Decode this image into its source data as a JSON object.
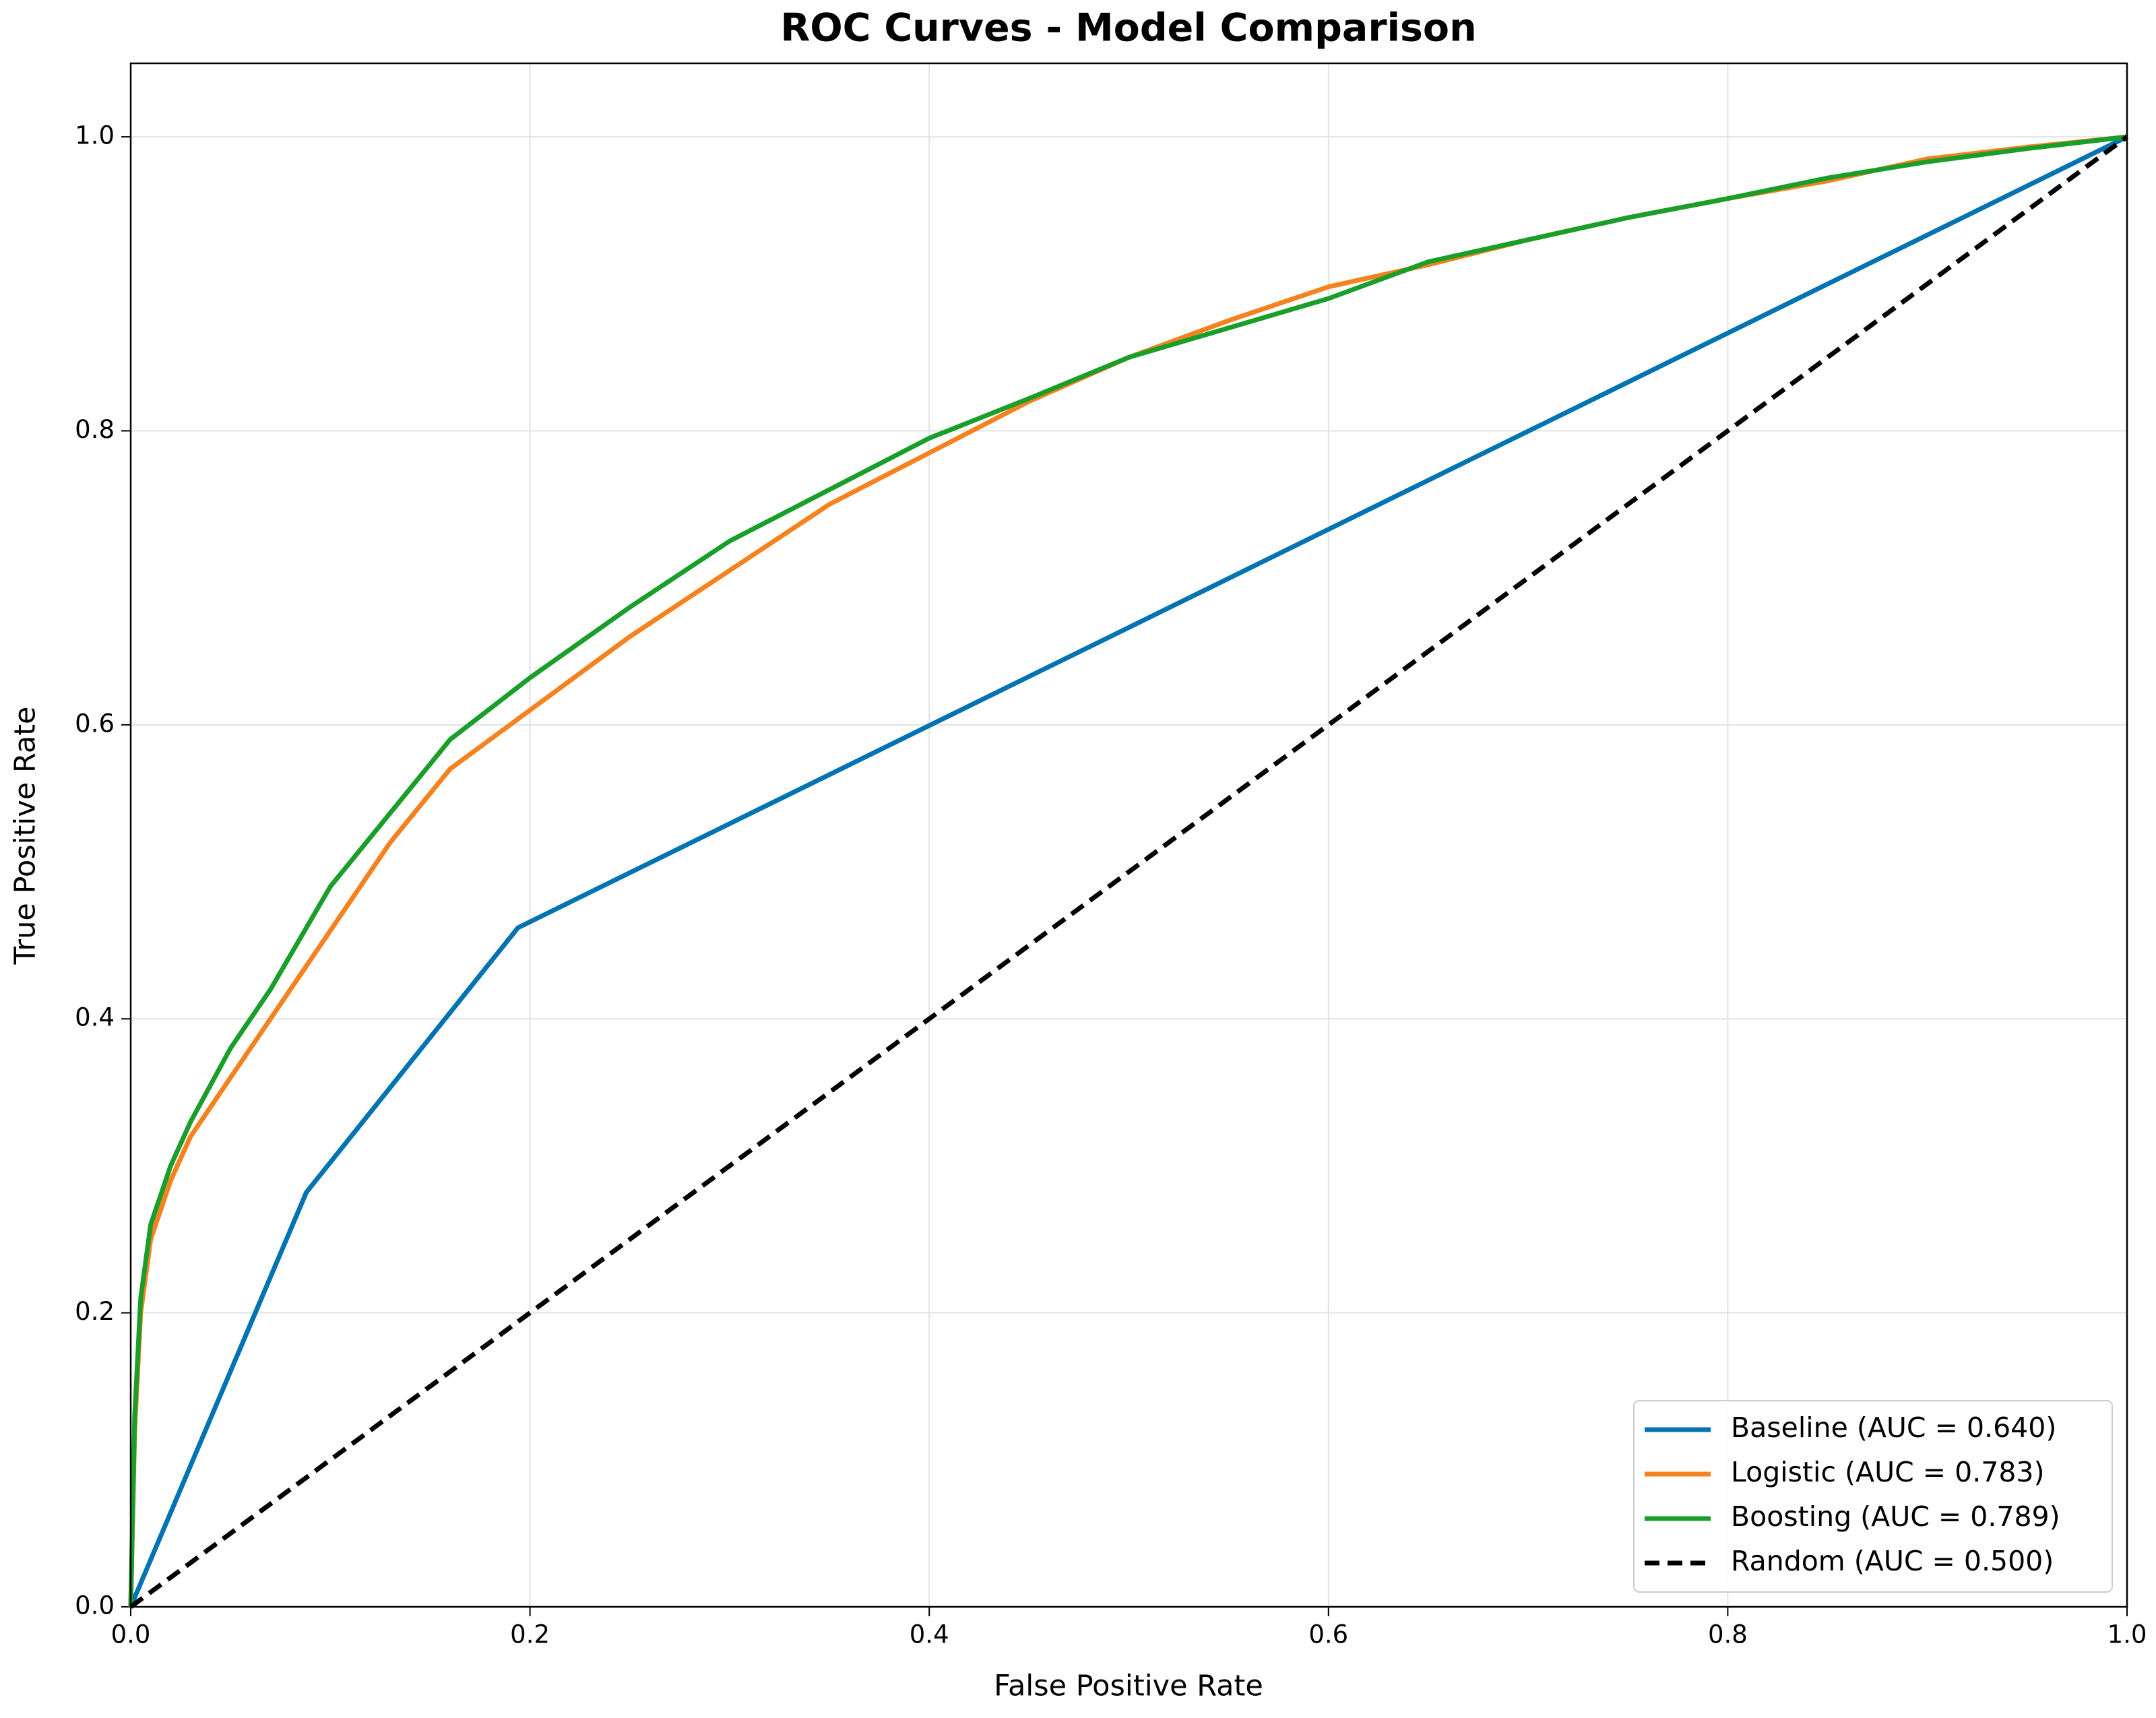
{
  "chart_data": {
    "type": "line",
    "title": "ROC Curves - Model Comparison",
    "x_label": "False Positive Rate",
    "y_label": "True Positive Rate",
    "xlim": [
      0,
      1
    ],
    "ylim": [
      0,
      1.05
    ],
    "xticks": [
      {
        "value": 0,
        "label": "0.0"
      },
      0.2,
      0.4,
      0.6,
      0.8,
      {
        "value": 1,
        "label": "1.0"
      }
    ],
    "yticks": [
      {
        "value": 0,
        "label": "0.0"
      },
      0.2,
      0.4,
      0.6,
      0.8,
      {
        "value": 1,
        "label": "1.0"
      }
    ],
    "grid": true,
    "legend": "lower right",
    "series": [
      {
        "name": "Baseline (AUC = 0.640)",
        "color": "#0173b2",
        "linestyle": "solid",
        "x": [
          0,
          0.088,
          0.194,
          1
        ],
        "values": [
          0,
          0.282,
          0.462,
          1
        ]
      },
      {
        "name": "Logistic (AUC = 0.783)",
        "color": "#f5821f",
        "linestyle": "solid",
        "x": [
          0,
          0.002,
          0.005,
          0.01,
          0.02,
          0.03,
          0.05,
          0.07,
          0.1,
          0.13,
          0.16,
          0.2,
          0.25,
          0.3,
          0.35,
          0.4,
          0.45,
          0.5,
          0.55,
          0.6,
          0.65,
          0.7,
          0.75,
          0.8,
          0.85,
          0.9,
          0.95,
          1
        ],
        "values": [
          0,
          0.12,
          0.2,
          0.25,
          0.29,
          0.32,
          0.36,
          0.4,
          0.46,
          0.52,
          0.57,
          0.61,
          0.66,
          0.705,
          0.75,
          0.785,
          0.82,
          0.85,
          0.875,
          0.898,
          0.913,
          0.93,
          0.945,
          0.958,
          0.97,
          0.985,
          0.993,
          1
        ]
      },
      {
        "name": "Boosting (AUC = 0.789)",
        "color": "#1a9e2a",
        "linestyle": "solid",
        "x": [
          0,
          0.002,
          0.005,
          0.01,
          0.02,
          0.03,
          0.05,
          0.07,
          0.1,
          0.13,
          0.16,
          0.2,
          0.25,
          0.3,
          0.35,
          0.4,
          0.45,
          0.5,
          0.55,
          0.6,
          0.65,
          0.7,
          0.75,
          0.8,
          0.85,
          0.9,
          0.95,
          1
        ],
        "values": [
          0,
          0.13,
          0.21,
          0.26,
          0.3,
          0.33,
          0.38,
          0.42,
          0.49,
          0.54,
          0.59,
          0.632,
          0.68,
          0.725,
          0.76,
          0.795,
          0.822,
          0.85,
          0.87,
          0.89,
          0.915,
          0.93,
          0.945,
          0.958,
          0.972,
          0.983,
          0.992,
          1
        ]
      },
      {
        "name": "Random (AUC = 0.500)",
        "color": "#000000",
        "linestyle": "dashed",
        "x": [
          0,
          1
        ],
        "values": [
          0,
          1
        ]
      }
    ]
  }
}
